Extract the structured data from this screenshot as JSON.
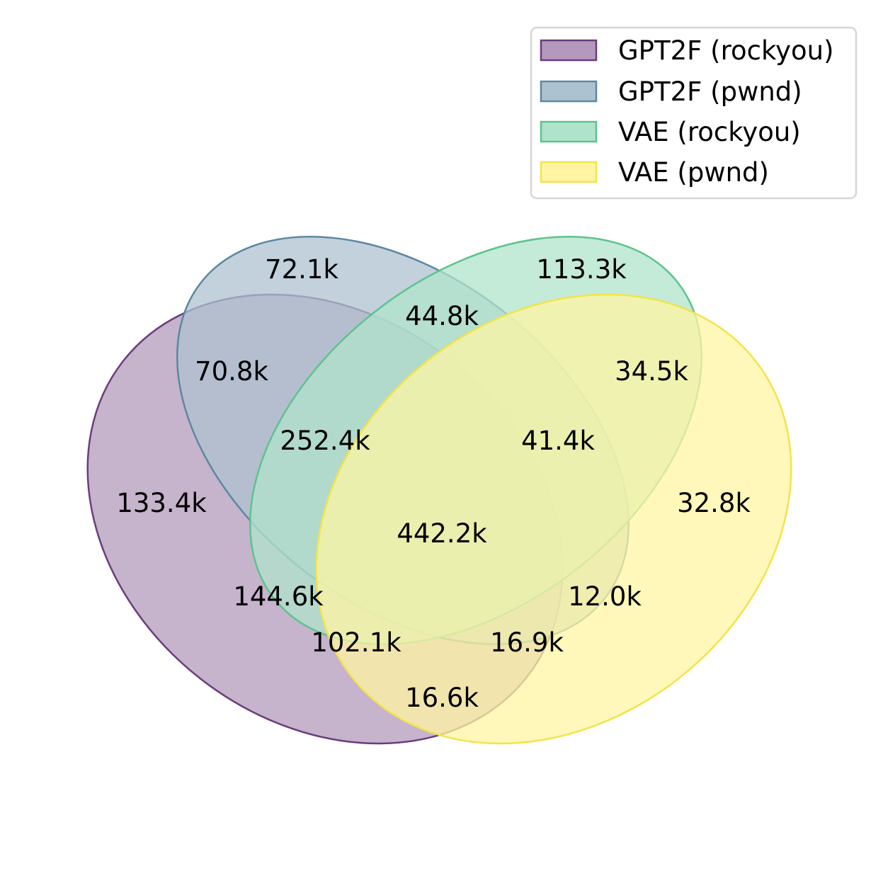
{
  "sets": [
    {
      "name": "GPT2F (rockyou)",
      "fill": "#b399bb",
      "stroke": "#6a3d7c"
    },
    {
      "name": "GPT2F (pwnd)",
      "fill": "#adc2d0",
      "stroke": "#5b88a2"
    },
    {
      "name": "VAE (rockyou)",
      "fill": "#b0e3cb",
      "stroke": "#5cc38d"
    },
    {
      "name": "VAE (pwnd)",
      "fill": "#fff5a3",
      "stroke": "#f3e34a"
    }
  ],
  "regions": [
    {
      "key": "gpt2f_pwnd_only",
      "label": "72.1k"
    },
    {
      "key": "vae_rockyou_only",
      "label": "113.3k"
    },
    {
      "key": "pwnd_gpt2f_and_vae_rockyou",
      "label": "44.8k"
    },
    {
      "key": "rockyou_gpt2f_and_pwnd_gpt2f",
      "label": "70.8k"
    },
    {
      "key": "vae_rockyou_and_vae_pwnd",
      "label": "34.5k"
    },
    {
      "key": "three_no_vae_pwnd",
      "label": "252.4k"
    },
    {
      "key": "three_no_gpt2f_rockyou",
      "label": "41.4k"
    },
    {
      "key": "gpt2f_rockyou_only",
      "label": "133.4k"
    },
    {
      "key": "vae_pwnd_only",
      "label": "32.8k"
    },
    {
      "key": "all_four",
      "label": "442.2k"
    },
    {
      "key": "gpt2f_rockyou_and_vae_rockyou",
      "label": "144.6k"
    },
    {
      "key": "gpt2f_pwnd_and_vae_pwnd",
      "label": "12.0k"
    },
    {
      "key": "three_no_gpt2f_pwnd",
      "label": "102.1k"
    },
    {
      "key": "three_no_vae_rockyou",
      "label": "16.9k"
    },
    {
      "key": "gpt2f_rockyou_and_vae_pwnd",
      "label": "16.6k"
    }
  ]
}
